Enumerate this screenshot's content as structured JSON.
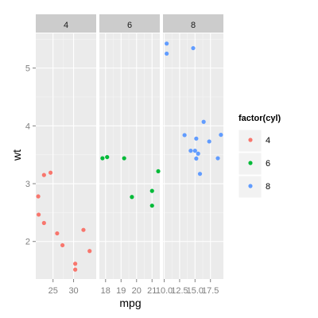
{
  "chart_data": {
    "type": "scatter",
    "title": "",
    "xlabel": "mpg",
    "ylabel": "wt",
    "facet_by": "cyl",
    "ylim": [
      1.35,
      5.6
    ],
    "yticks": [
      2,
      3,
      4,
      5
    ],
    "colors": {
      "panel_bg": "#ebebeb",
      "strip_bg": "#cccccc",
      "grid_major": "#ffffff",
      "grid_minor": "#f5f5f5"
    },
    "legend": {
      "title": "factor(cyl)",
      "position": "right",
      "entries": [
        {
          "label": "4",
          "color": "#f8766d"
        },
        {
          "label": "6",
          "color": "#00ba38"
        },
        {
          "label": "8",
          "color": "#619cff"
        }
      ]
    },
    "panels": [
      {
        "label": "4",
        "color": "#f8766d",
        "xlim": [
          20.8,
          35.5
        ],
        "xticks": [
          25,
          30
        ],
        "xtick_labels": [
          "25",
          "30"
        ],
        "points": [
          {
            "x": 22.8,
            "y": 2.32
          },
          {
            "x": 24.4,
            "y": 3.19
          },
          {
            "x": 22.8,
            "y": 3.15
          },
          {
            "x": 32.4,
            "y": 2.2
          },
          {
            "x": 30.4,
            "y": 1.615
          },
          {
            "x": 33.9,
            "y": 1.835
          },
          {
            "x": 21.5,
            "y": 2.465
          },
          {
            "x": 27.3,
            "y": 1.935
          },
          {
            "x": 26.0,
            "y": 2.14
          },
          {
            "x": 30.4,
            "y": 1.513
          },
          {
            "x": 21.4,
            "y": 2.78
          }
        ]
      },
      {
        "label": "6",
        "color": "#00ba38",
        "xlim": [
          17.6,
          21.5
        ],
        "xticks": [
          18,
          19,
          20,
          21
        ],
        "xtick_labels": [
          "18",
          "19",
          "20",
          "21"
        ],
        "points": [
          {
            "x": 21.0,
            "y": 2.62
          },
          {
            "x": 21.0,
            "y": 2.875
          },
          {
            "x": 21.4,
            "y": 3.215
          },
          {
            "x": 18.1,
            "y": 3.46
          },
          {
            "x": 19.2,
            "y": 3.44
          },
          {
            "x": 17.8,
            "y": 3.44
          },
          {
            "x": 19.7,
            "y": 2.77
          }
        ]
      },
      {
        "label": "8",
        "color": "#619cff",
        "xlim": [
          9.8,
          19.6
        ],
        "xticks": [
          10.0,
          12.5,
          15.0,
          17.5
        ],
        "xtick_labels": [
          "10.0",
          "12.5",
          "15.0",
          "17.5"
        ],
        "points": [
          {
            "x": 18.7,
            "y": 3.44
          },
          {
            "x": 14.3,
            "y": 3.57
          },
          {
            "x": 16.4,
            "y": 4.07
          },
          {
            "x": 17.3,
            "y": 3.73
          },
          {
            "x": 15.2,
            "y": 3.78
          },
          {
            "x": 10.4,
            "y": 5.25
          },
          {
            "x": 10.4,
            "y": 5.424
          },
          {
            "x": 14.7,
            "y": 5.345
          },
          {
            "x": 15.5,
            "y": 3.52
          },
          {
            "x": 15.2,
            "y": 3.435
          },
          {
            "x": 13.3,
            "y": 3.84
          },
          {
            "x": 19.2,
            "y": 3.845
          },
          {
            "x": 15.8,
            "y": 3.17
          },
          {
            "x": 15.0,
            "y": 3.57
          }
        ]
      }
    ]
  }
}
